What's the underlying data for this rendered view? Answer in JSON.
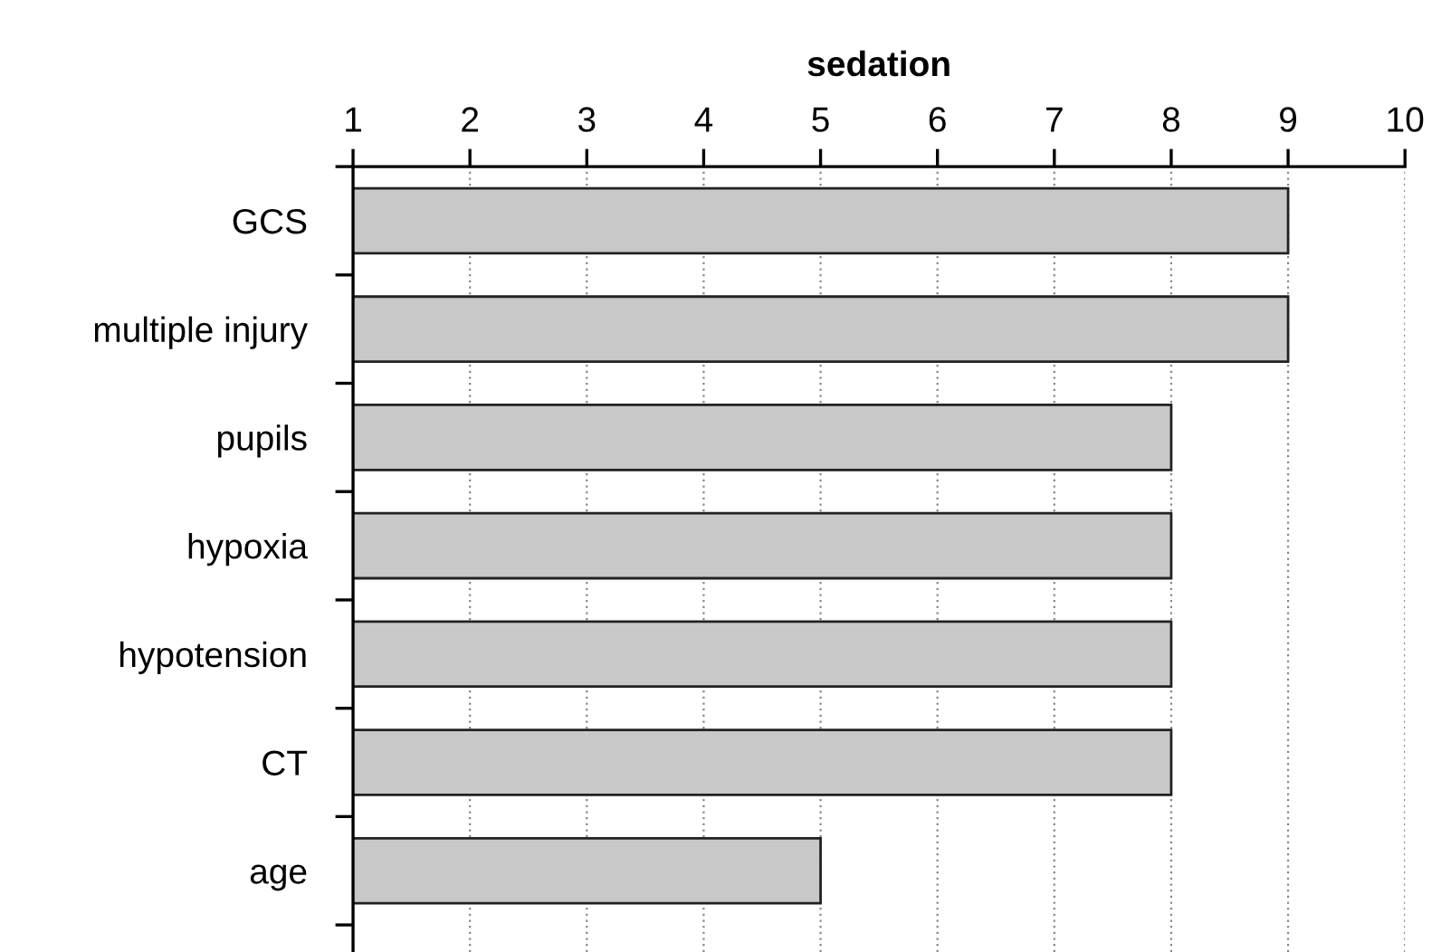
{
  "chart_data": {
    "type": "bar",
    "orientation": "horizontal",
    "xlabel": "sedation",
    "categories": [
      "GCS",
      "multiple injury",
      "pupils",
      "hypoxia",
      "hypotension",
      "CT",
      "age"
    ],
    "values": [
      9,
      9,
      8,
      8,
      8,
      8,
      5
    ],
    "color": "#c8c8c8",
    "xlim": [
      1,
      10
    ],
    "xticks": [
      1,
      2,
      3,
      4,
      5,
      6,
      7,
      8,
      9,
      10
    ],
    "grid": "x"
  }
}
